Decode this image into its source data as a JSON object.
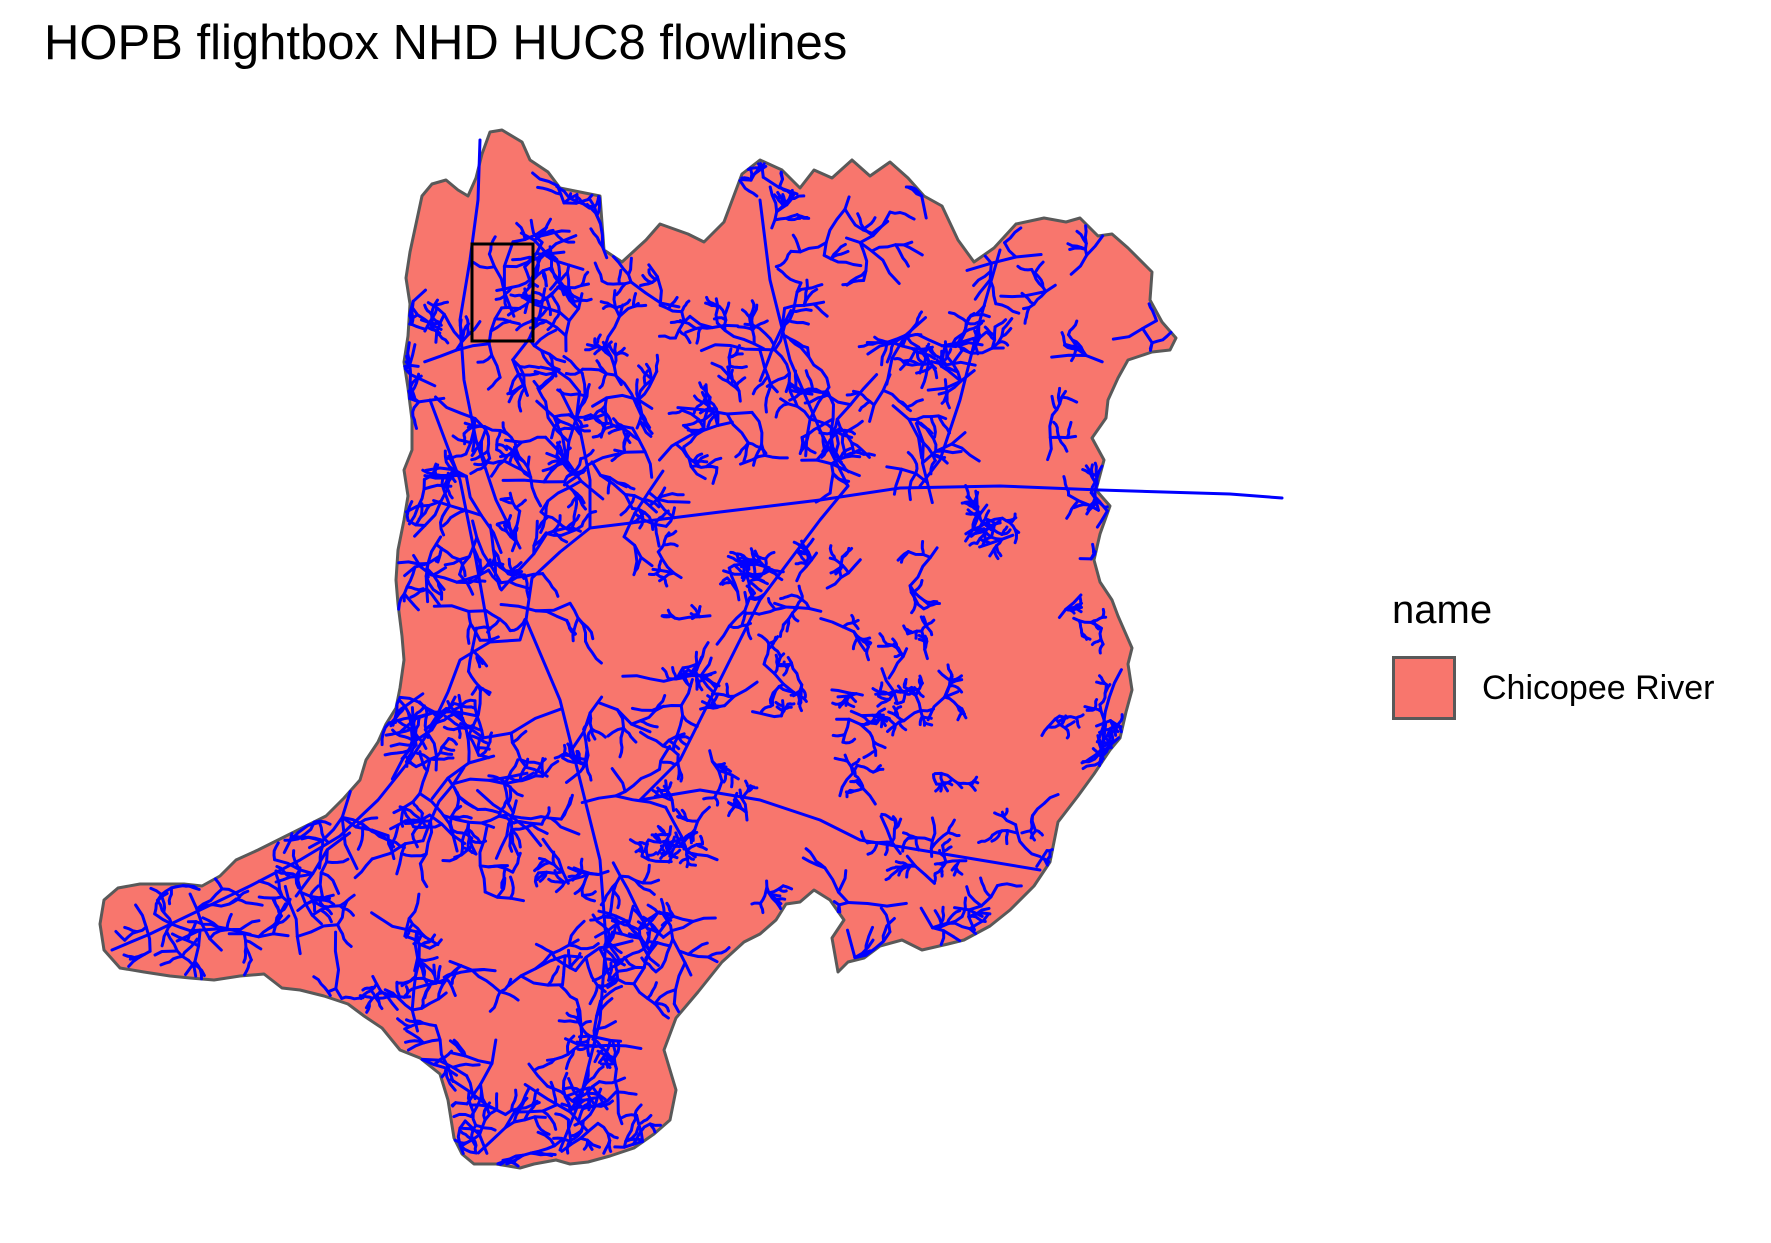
{
  "title": "HOPB flightbox NHD HUC8 flowlines",
  "legend": {
    "title": "name",
    "items": [
      {
        "label": "Chicopee River",
        "color": "#F8766D"
      }
    ]
  },
  "colors": {
    "watershed_fill": "#F8766D",
    "watershed_border": "#595959",
    "flowlines": "#0000FF",
    "flightbox": "#000000"
  }
}
